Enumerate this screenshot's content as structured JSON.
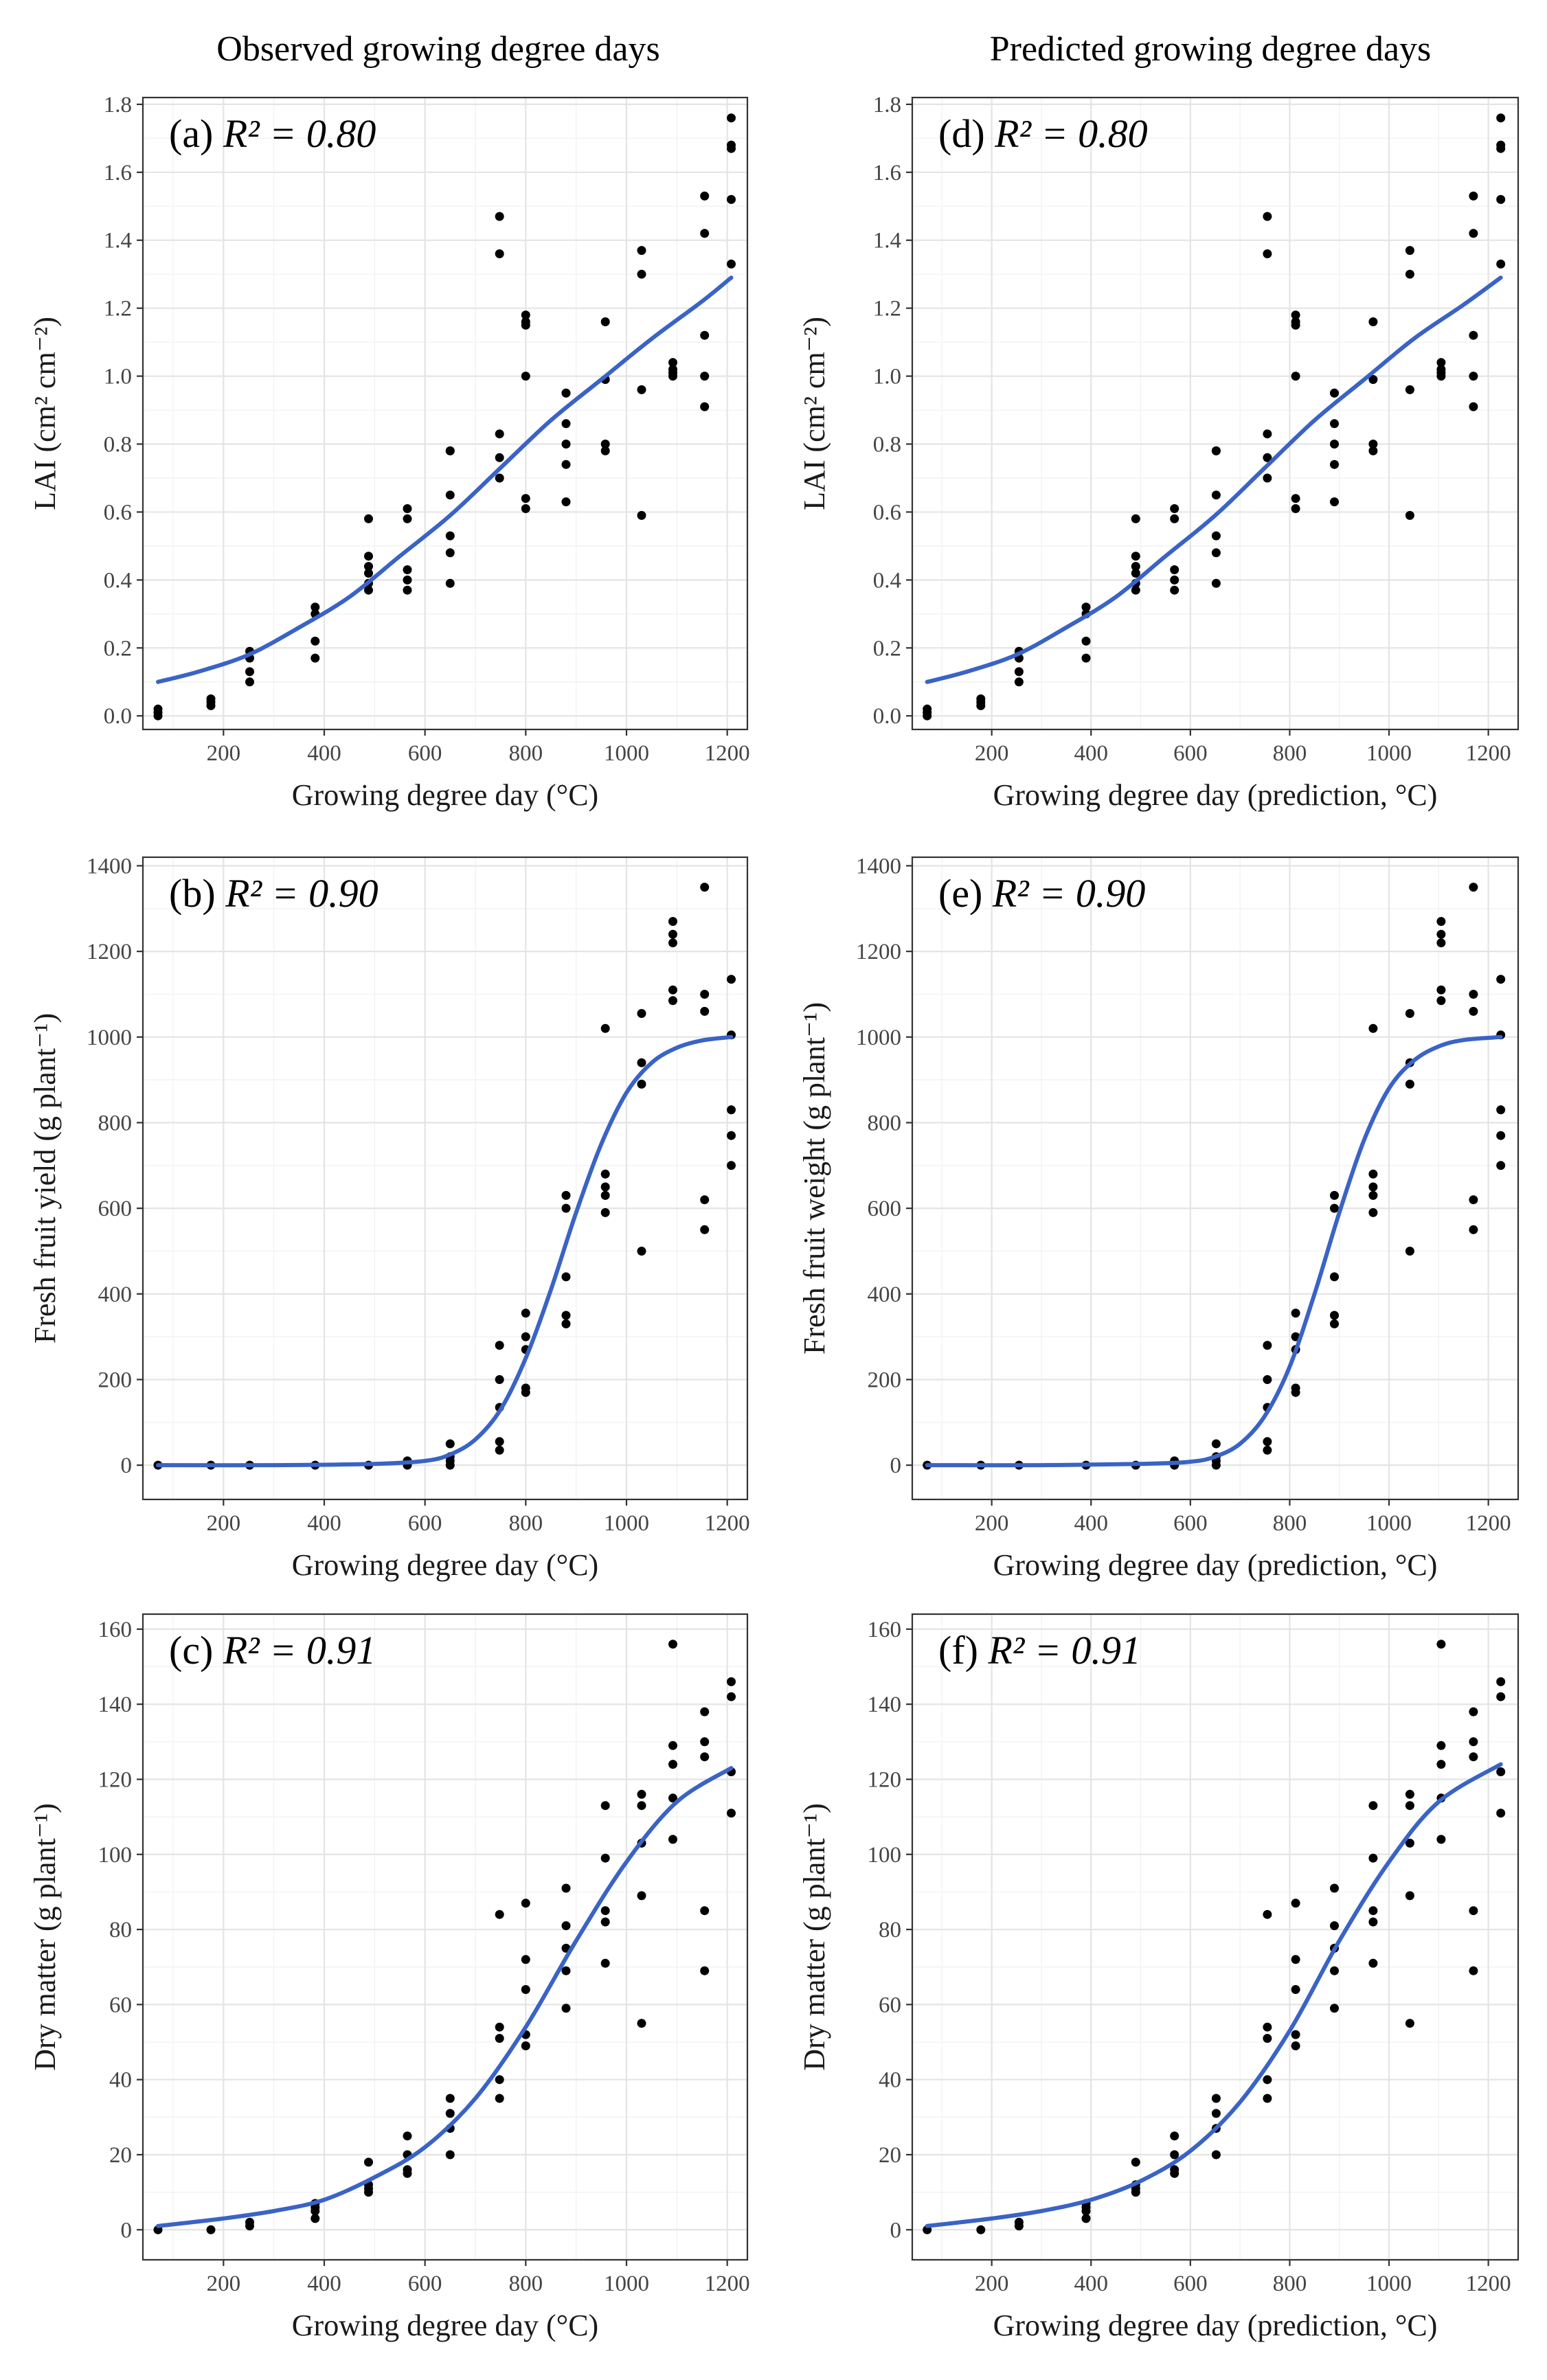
{
  "column_titles": {
    "left": "Observed growing degree days",
    "right": "Predicted growing degree days"
  },
  "chart_data": [
    {
      "id": "a",
      "type": "scatter",
      "label": "(a) ",
      "r2": "R² = 0.80",
      "xlabel": "Growing degree day (°C)",
      "ylabel": "LAI (cm² cm⁻²)",
      "xlim": [
        40,
        1240
      ],
      "ylim": [
        -0.04,
        1.82
      ],
      "xticks": [
        200,
        400,
        600,
        800,
        1000,
        1200
      ],
      "xtick_labels": [
        "200",
        "400",
        "600",
        "800",
        "1000",
        "1200"
      ],
      "yticks": [
        0.0,
        0.2,
        0.4,
        0.6,
        0.8,
        1.0,
        1.2,
        1.4,
        1.6,
        1.8
      ],
      "ytick_labels": [
        "0.0",
        "0.2",
        "0.4",
        "0.6",
        "0.8",
        "1.0",
        "1.2",
        "1.4",
        "1.6",
        "1.8"
      ],
      "points": {
        "x": [
          70,
          70,
          70,
          175,
          175,
          175,
          252,
          252,
          252,
          252,
          382,
          382,
          382,
          382,
          488,
          488,
          488,
          488,
          488,
          488,
          565,
          565,
          565,
          565,
          565,
          650,
          650,
          650,
          650,
          650,
          650,
          748,
          748,
          748,
          748,
          748,
          800,
          800,
          800,
          800,
          800,
          800,
          880,
          880,
          880,
          880,
          880,
          880,
          958,
          958,
          958,
          958,
          1030,
          1030,
          1030,
          1030,
          1092,
          1092,
          1092,
          1092,
          1155,
          1155,
          1155,
          1155,
          1155,
          1208,
          1208,
          1208,
          1208,
          1208
        ],
        "y": [
          0.0,
          0.01,
          0.02,
          0.03,
          0.04,
          0.05,
          0.1,
          0.13,
          0.17,
          0.19,
          0.17,
          0.22,
          0.3,
          0.32,
          0.37,
          0.39,
          0.42,
          0.44,
          0.47,
          0.58,
          0.37,
          0.4,
          0.43,
          0.58,
          0.61,
          0.39,
          0.48,
          0.53,
          0.65,
          0.78,
          0.78,
          0.7,
          0.76,
          0.83,
          1.36,
          1.47,
          0.61,
          0.64,
          1.0,
          1.15,
          1.16,
          1.18,
          0.63,
          0.74,
          0.8,
          0.86,
          0.95,
          0.95,
          0.78,
          0.8,
          0.99,
          1.16,
          0.59,
          0.96,
          1.3,
          1.37,
          1.0,
          1.01,
          1.02,
          1.04,
          0.91,
          1.0,
          1.12,
          1.42,
          1.53,
          1.33,
          1.52,
          1.67,
          1.68,
          1.76
        ]
      },
      "fit": {
        "x": [
          70,
          150,
          250,
          350,
          450,
          550,
          650,
          750,
          850,
          950,
          1050,
          1150,
          1208
        ],
        "y": [
          0.1,
          0.13,
          0.18,
          0.26,
          0.35,
          0.47,
          0.59,
          0.73,
          0.87,
          0.99,
          1.11,
          1.22,
          1.29
        ]
      }
    },
    {
      "id": "d",
      "type": "scatter",
      "label": "(d) ",
      "r2": "R² = 0.80",
      "xlabel": "Growing degree day (prediction, °C)",
      "ylabel": "LAI (cm² cm⁻²)",
      "xlim": [
        40,
        1260
      ],
      "ylim": [
        -0.04,
        1.82
      ],
      "xticks": [
        200,
        400,
        600,
        800,
        1000,
        1200
      ],
      "xtick_labels": [
        "200",
        "400",
        "600",
        "800",
        "1000",
        "1200"
      ],
      "yticks": [
        0.0,
        0.2,
        0.4,
        0.6,
        0.8,
        1.0,
        1.2,
        1.4,
        1.6,
        1.8
      ],
      "ytick_labels": [
        "0.0",
        "0.2",
        "0.4",
        "0.6",
        "0.8",
        "1.0",
        "1.2",
        "1.4",
        "1.6",
        "1.8"
      ],
      "points": {
        "x": [
          70,
          70,
          70,
          178,
          178,
          178,
          255,
          255,
          255,
          255,
          390,
          390,
          390,
          390,
          490,
          490,
          490,
          490,
          490,
          490,
          568,
          568,
          568,
          568,
          568,
          652,
          652,
          652,
          652,
          652,
          652,
          755,
          755,
          755,
          755,
          755,
          812,
          812,
          812,
          812,
          812,
          812,
          890,
          890,
          890,
          890,
          890,
          890,
          968,
          968,
          968,
          968,
          1042,
          1042,
          1042,
          1042,
          1105,
          1105,
          1105,
          1105,
          1170,
          1170,
          1170,
          1170,
          1170,
          1225,
          1225,
          1225,
          1225,
          1225
        ],
        "y": [
          0.0,
          0.01,
          0.02,
          0.03,
          0.04,
          0.05,
          0.1,
          0.13,
          0.17,
          0.19,
          0.17,
          0.22,
          0.3,
          0.32,
          0.37,
          0.39,
          0.42,
          0.44,
          0.47,
          0.58,
          0.37,
          0.4,
          0.43,
          0.58,
          0.61,
          0.39,
          0.48,
          0.53,
          0.65,
          0.78,
          0.78,
          0.7,
          0.76,
          0.83,
          1.36,
          1.47,
          0.61,
          0.64,
          1.0,
          1.15,
          1.16,
          1.18,
          0.63,
          0.74,
          0.8,
          0.86,
          0.95,
          0.95,
          0.78,
          0.8,
          0.99,
          1.16,
          0.59,
          0.96,
          1.3,
          1.37,
          1.0,
          1.01,
          1.02,
          1.04,
          0.91,
          1.0,
          1.12,
          1.42,
          1.53,
          1.33,
          1.52,
          1.67,
          1.68,
          1.76
        ]
      },
      "fit": {
        "x": [
          70,
          150,
          250,
          350,
          450,
          550,
          650,
          750,
          850,
          950,
          1050,
          1150,
          1225
        ],
        "y": [
          0.1,
          0.13,
          0.18,
          0.26,
          0.35,
          0.47,
          0.59,
          0.73,
          0.87,
          0.99,
          1.11,
          1.21,
          1.29
        ]
      }
    },
    {
      "id": "b",
      "type": "scatter",
      "label": "(b) ",
      "r2": "R² = 0.90",
      "xlabel": "Growing degree day (°C)",
      "ylabel": "Fresh fruit yield (g plant⁻¹)",
      "xlim": [
        40,
        1240
      ],
      "ylim": [
        -80,
        1420
      ],
      "xticks": [
        200,
        400,
        600,
        800,
        1000,
        1200
      ],
      "xtick_labels": [
        "200",
        "400",
        "600",
        "800",
        "1000",
        "1200"
      ],
      "yticks": [
        0,
        200,
        400,
        600,
        800,
        1000,
        1200,
        1400
      ],
      "ytick_labels": [
        "0",
        "200",
        "400",
        "600",
        "800",
        "1000",
        "1200",
        "1400"
      ],
      "points": {
        "x": [
          70,
          175,
          252,
          382,
          488,
          565,
          565,
          650,
          650,
          650,
          650,
          748,
          748,
          748,
          748,
          748,
          800,
          800,
          800,
          800,
          800,
          880,
          880,
          880,
          880,
          880,
          958,
          958,
          958,
          958,
          958,
          1030,
          1030,
          1030,
          1030,
          1092,
          1092,
          1092,
          1092,
          1092,
          1155,
          1155,
          1155,
          1155,
          1155,
          1208,
          1208,
          1208,
          1208,
          1208
        ],
        "y": [
          0,
          0,
          0,
          0,
          0,
          0,
          10,
          0,
          10,
          20,
          50,
          35,
          55,
          135,
          200,
          280,
          170,
          180,
          270,
          300,
          355,
          330,
          350,
          440,
          600,
          630,
          590,
          630,
          650,
          680,
          1020,
          500,
          890,
          940,
          1055,
          1085,
          1110,
          1220,
          1240,
          1270,
          550,
          620,
          1060,
          1100,
          1350,
          700,
          770,
          830,
          1005,
          1135
        ]
      },
      "fit": {
        "x": [
          70,
          300,
          500,
          600,
          650,
          700,
          750,
          800,
          850,
          900,
          950,
          1000,
          1050,
          1100,
          1150,
          1208
        ],
        "y": [
          0,
          0,
          3,
          10,
          25,
          60,
          130,
          250,
          410,
          590,
          750,
          870,
          940,
          975,
          992,
          1000
        ]
      }
    },
    {
      "id": "e",
      "type": "scatter",
      "label": "(e) ",
      "r2": "R² = 0.90",
      "xlabel": "Growing degree day (prediction, °C)",
      "ylabel": "Fresh fruit weight (g plant⁻¹)",
      "xlim": [
        40,
        1260
      ],
      "ylim": [
        -80,
        1420
      ],
      "xticks": [
        200,
        400,
        600,
        800,
        1000,
        1200
      ],
      "xtick_labels": [
        "200",
        "400",
        "600",
        "800",
        "1000",
        "1200"
      ],
      "yticks": [
        0,
        200,
        400,
        600,
        800,
        1000,
        1200,
        1400
      ],
      "ytick_labels": [
        "0",
        "200",
        "400",
        "600",
        "800",
        "1000",
        "1200",
        "1400"
      ],
      "points": {
        "x": [
          70,
          178,
          255,
          390,
          490,
          568,
          568,
          652,
          652,
          652,
          652,
          755,
          755,
          755,
          755,
          755,
          812,
          812,
          812,
          812,
          812,
          890,
          890,
          890,
          890,
          890,
          968,
          968,
          968,
          968,
          968,
          1042,
          1042,
          1042,
          1042,
          1105,
          1105,
          1105,
          1105,
          1105,
          1170,
          1170,
          1170,
          1170,
          1170,
          1225,
          1225,
          1225,
          1225,
          1225
        ],
        "y": [
          0,
          0,
          0,
          0,
          0,
          0,
          10,
          0,
          10,
          20,
          50,
          35,
          55,
          135,
          200,
          280,
          170,
          180,
          270,
          300,
          355,
          330,
          350,
          440,
          600,
          630,
          590,
          630,
          650,
          680,
          1020,
          500,
          890,
          940,
          1055,
          1085,
          1110,
          1220,
          1240,
          1270,
          550,
          620,
          1060,
          1100,
          1350,
          700,
          770,
          830,
          1005,
          1135
        ]
      },
      "fit": {
        "x": [
          70,
          300,
          500,
          600,
          650,
          700,
          750,
          800,
          850,
          900,
          950,
          1000,
          1050,
          1100,
          1150,
          1225
        ],
        "y": [
          0,
          0,
          3,
          8,
          20,
          50,
          115,
          230,
          400,
          590,
          760,
          880,
          945,
          978,
          993,
          1000
        ]
      }
    },
    {
      "id": "c",
      "type": "scatter",
      "label": "(c) ",
      "r2": "R² = 0.91",
      "xlabel": "Growing degree day (°C)",
      "ylabel": "Dry matter (g plant⁻¹)",
      "xlim": [
        40,
        1240
      ],
      "ylim": [
        -8,
        164
      ],
      "xticks": [
        200,
        400,
        600,
        800,
        1000,
        1200
      ],
      "xtick_labels": [
        "200",
        "400",
        "600",
        "800",
        "1000",
        "1200"
      ],
      "yticks": [
        0,
        20,
        40,
        60,
        80,
        100,
        120,
        140,
        160
      ],
      "ytick_labels": [
        "0",
        "20",
        "40",
        "60",
        "80",
        "100",
        "120",
        "140",
        "160"
      ],
      "points": {
        "x": [
          70,
          175,
          252,
          252,
          382,
          382,
          382,
          382,
          488,
          488,
          488,
          488,
          565,
          565,
          565,
          565,
          650,
          650,
          650,
          650,
          748,
          748,
          748,
          748,
          748,
          800,
          800,
          800,
          800,
          800,
          880,
          880,
          880,
          880,
          880,
          958,
          958,
          958,
          958,
          958,
          1030,
          1030,
          1030,
          1030,
          1030,
          1092,
          1092,
          1092,
          1092,
          1092,
          1155,
          1155,
          1155,
          1155,
          1155,
          1208,
          1208,
          1208,
          1208
        ],
        "y": [
          0,
          0,
          1,
          2,
          3,
          5,
          6,
          7,
          10,
          11,
          12,
          18,
          15,
          16,
          20,
          25,
          20,
          27,
          31,
          35,
          35,
          40,
          51,
          54,
          84,
          49,
          52,
          64,
          72,
          87,
          59,
          69,
          75,
          81,
          91,
          71,
          82,
          85,
          99,
          113,
          55,
          89,
          103,
          113,
          116,
          104,
          115,
          124,
          129,
          156,
          69,
          85,
          126,
          130,
          138,
          111,
          122,
          142,
          146
        ]
      },
      "fit": {
        "x": [
          70,
          200,
          300,
          400,
          500,
          600,
          700,
          800,
          900,
          1000,
          1100,
          1208
        ],
        "y": [
          1,
          3,
          5,
          8,
          14,
          22,
          35,
          54,
          77,
          98,
          114,
          123
        ]
      }
    },
    {
      "id": "f",
      "type": "scatter",
      "label": "(f) ",
      "r2": "R² = 0.91",
      "xlabel": "Growing degree day (prediction, °C)",
      "ylabel": "Dry matter (g plant⁻¹)",
      "xlim": [
        40,
        1260
      ],
      "ylim": [
        -8,
        164
      ],
      "xticks": [
        200,
        400,
        600,
        800,
        1000,
        1200
      ],
      "xtick_labels": [
        "200",
        "400",
        "600",
        "800",
        "1000",
        "1200"
      ],
      "yticks": [
        0,
        20,
        40,
        60,
        80,
        100,
        120,
        140,
        160
      ],
      "ytick_labels": [
        "0",
        "20",
        "40",
        "60",
        "80",
        "100",
        "120",
        "140",
        "160"
      ],
      "points": {
        "x": [
          70,
          178,
          255,
          255,
          390,
          390,
          390,
          390,
          490,
          490,
          490,
          490,
          568,
          568,
          568,
          568,
          652,
          652,
          652,
          652,
          755,
          755,
          755,
          755,
          755,
          812,
          812,
          812,
          812,
          812,
          890,
          890,
          890,
          890,
          890,
          968,
          968,
          968,
          968,
          968,
          1042,
          1042,
          1042,
          1042,
          1042,
          1105,
          1105,
          1105,
          1105,
          1105,
          1170,
          1170,
          1170,
          1170,
          1170,
          1225,
          1225,
          1225,
          1225
        ],
        "y": [
          0,
          0,
          1,
          2,
          3,
          5,
          6,
          7,
          10,
          11,
          12,
          18,
          15,
          16,
          20,
          25,
          20,
          27,
          31,
          35,
          35,
          40,
          51,
          54,
          84,
          49,
          52,
          64,
          72,
          87,
          59,
          69,
          75,
          81,
          91,
          71,
          82,
          85,
          99,
          113,
          55,
          89,
          103,
          113,
          116,
          104,
          115,
          124,
          129,
          156,
          69,
          85,
          126,
          130,
          138,
          111,
          122,
          142,
          146
        ]
      },
      "fit": {
        "x": [
          70,
          200,
          300,
          400,
          500,
          600,
          700,
          800,
          900,
          1000,
          1100,
          1225
        ],
        "y": [
          1,
          3,
          5,
          8,
          13,
          21,
          34,
          53,
          77,
          98,
          114,
          124
        ]
      }
    }
  ]
}
